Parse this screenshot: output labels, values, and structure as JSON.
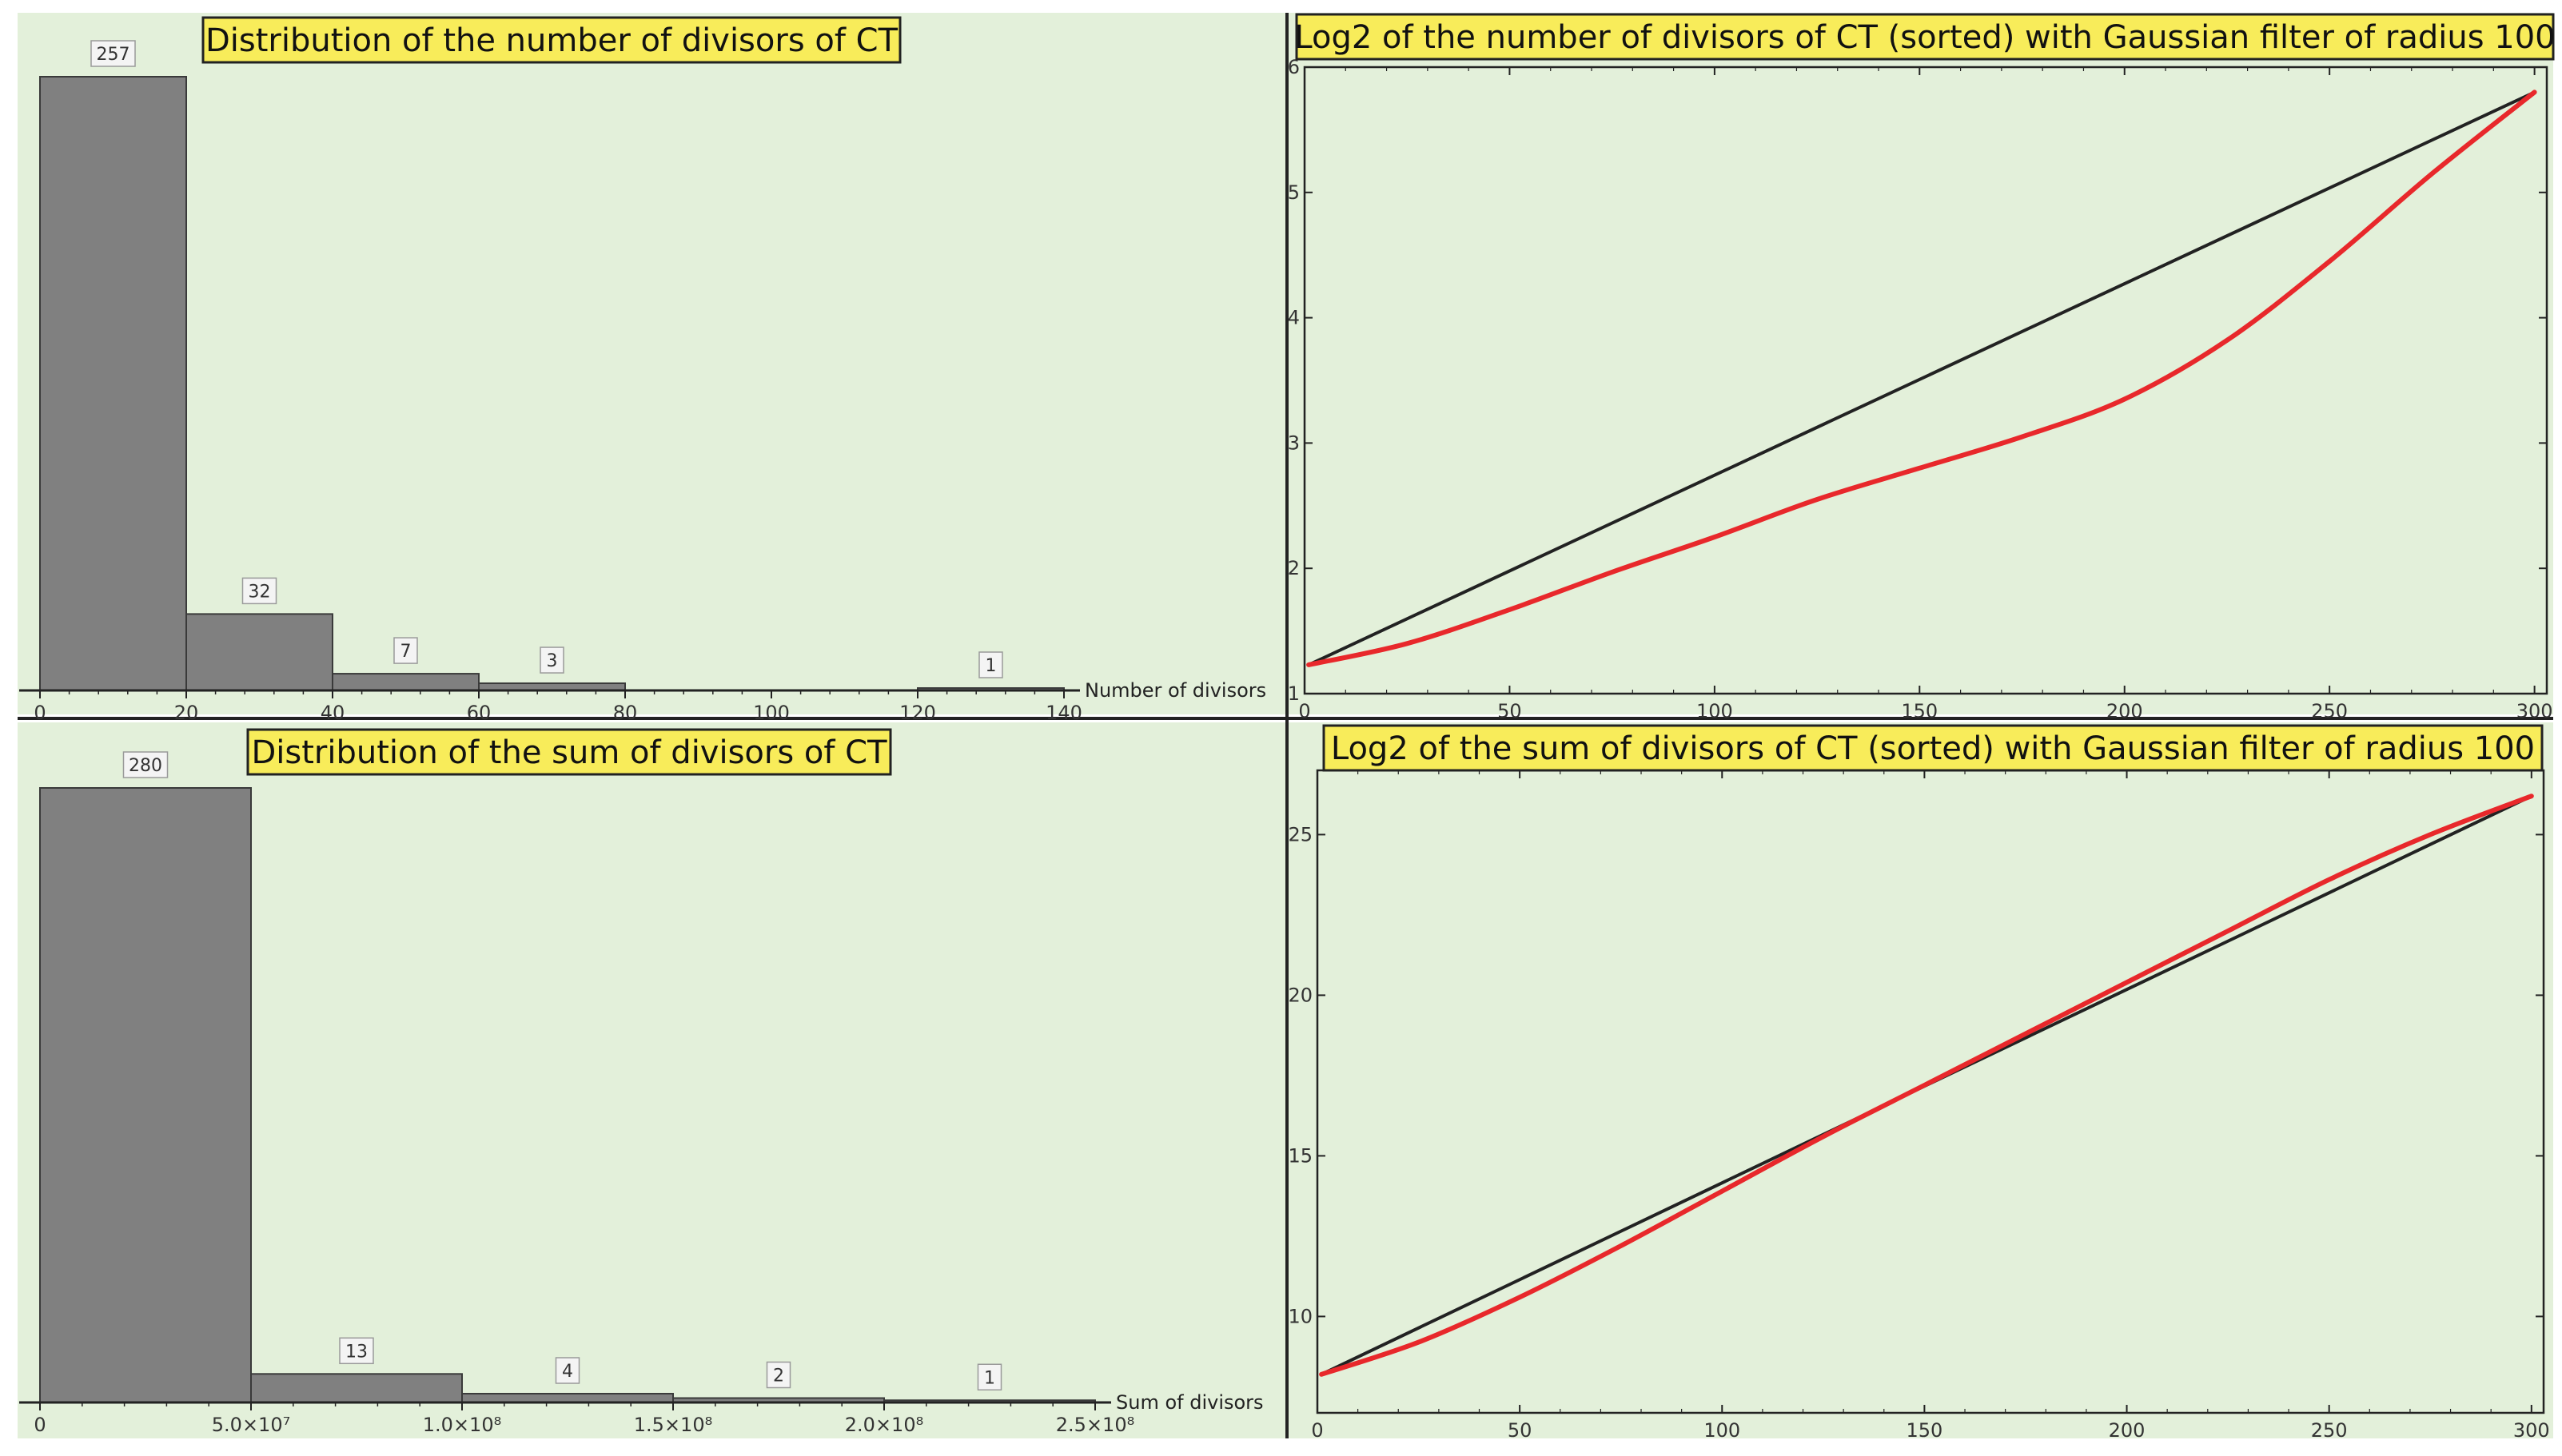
{
  "colors": {
    "panel_background": "#e3f0da",
    "page_background": "#ffffff",
    "title_fill": "#f8ec5a",
    "title_border": "#222222",
    "bar_fill": "#808080",
    "bar_stroke": "#3a3a3a",
    "reference_line": "#222222",
    "smoothed_line": "#e8282b",
    "axis": "#222222",
    "divider": "#222222"
  },
  "chart_data": [
    {
      "id": "hist-count",
      "type": "bar",
      "title": "Distribution of the number of divisors of CT",
      "xlabel": "Number of divisors",
      "ylabel": "",
      "bins": [
        [
          0,
          20
        ],
        [
          20,
          40
        ],
        [
          40,
          60
        ],
        [
          60,
          80
        ],
        [
          80,
          100
        ],
        [
          100,
          120
        ],
        [
          120,
          140
        ]
      ],
      "values": [
        257,
        32,
        7,
        3,
        0,
        0,
        1
      ],
      "labeled_bins": [
        0,
        1,
        2,
        3,
        6
      ],
      "xlim": [
        0,
        140
      ],
      "ylim": [
        0,
        257
      ],
      "xticks": [
        0,
        20,
        40,
        60,
        80,
        100,
        120,
        140
      ],
      "xtick_labels": [
        "0",
        "20",
        "40",
        "60",
        "80",
        "100",
        "120",
        "140"
      ],
      "grid": false,
      "legend": "none"
    },
    {
      "id": "hist-sum",
      "type": "bar",
      "title": "Distribution of the sum of divisors of CT",
      "xlabel": "Sum of divisors",
      "ylabel": "",
      "bins": [
        [
          0,
          50000000
        ],
        [
          50000000,
          100000000
        ],
        [
          100000000,
          150000000
        ],
        [
          150000000,
          200000000
        ],
        [
          200000000,
          250000000
        ]
      ],
      "values": [
        280,
        13,
        4,
        2,
        1
      ],
      "labeled_bins": [
        0,
        1,
        2,
        3,
        4
      ],
      "xlim": [
        0,
        250000000
      ],
      "ylim": [
        0,
        280
      ],
      "xticks": [
        0,
        50000000,
        100000000,
        150000000,
        200000000,
        250000000
      ],
      "xtick_labels": [
        "0",
        "5.0×10⁷",
        "1.0×10⁸",
        "1.5×10⁸",
        "2.0×10⁸",
        "2.5×10⁸"
      ],
      "grid": false,
      "legend": "none"
    },
    {
      "id": "log-count",
      "type": "line",
      "title": "Log2 of the number of divisors of CT (sorted) with Gaussian filter of radius 100",
      "xlabel": "",
      "ylabel": "",
      "xlim": [
        0,
        303
      ],
      "ylim": [
        1,
        6
      ],
      "xticks": [
        0,
        50,
        100,
        150,
        200,
        250,
        300
      ],
      "yticks": [
        1,
        2,
        3,
        4,
        5,
        6
      ],
      "grid": false,
      "legend": "none",
      "series": [
        {
          "role": "reference",
          "x": [
            1,
            300
          ],
          "y": [
            1.23,
            5.8
          ]
        },
        {
          "role": "smoothed",
          "x": [
            1,
            25,
            50,
            75,
            100,
            125,
            150,
            175,
            200,
            225,
            250,
            275,
            300
          ],
          "y": [
            1.23,
            1.4,
            1.67,
            1.97,
            2.25,
            2.55,
            2.8,
            3.05,
            3.35,
            3.82,
            4.45,
            5.15,
            5.8
          ]
        }
      ]
    },
    {
      "id": "log-sum",
      "type": "line",
      "title": "Log2 of the sum of divisors of CT (sorted) with Gaussian filter of radius 100",
      "xlabel": "",
      "ylabel": "",
      "xlim": [
        0,
        303
      ],
      "ylim": [
        7,
        27
      ],
      "xticks": [
        0,
        50,
        100,
        150,
        200,
        250,
        300
      ],
      "yticks": [
        10,
        15,
        20,
        25
      ],
      "grid": false,
      "legend": "none",
      "series": [
        {
          "role": "reference",
          "x": [
            1,
            300
          ],
          "y": [
            8.2,
            26.2
          ]
        },
        {
          "role": "smoothed",
          "x": [
            1,
            25,
            50,
            75,
            100,
            125,
            150,
            175,
            200,
            225,
            250,
            275,
            300
          ],
          "y": [
            8.2,
            9.2,
            10.6,
            12.2,
            13.9,
            15.6,
            17.2,
            18.8,
            20.4,
            22.0,
            23.6,
            25.0,
            26.2
          ]
        }
      ]
    }
  ]
}
